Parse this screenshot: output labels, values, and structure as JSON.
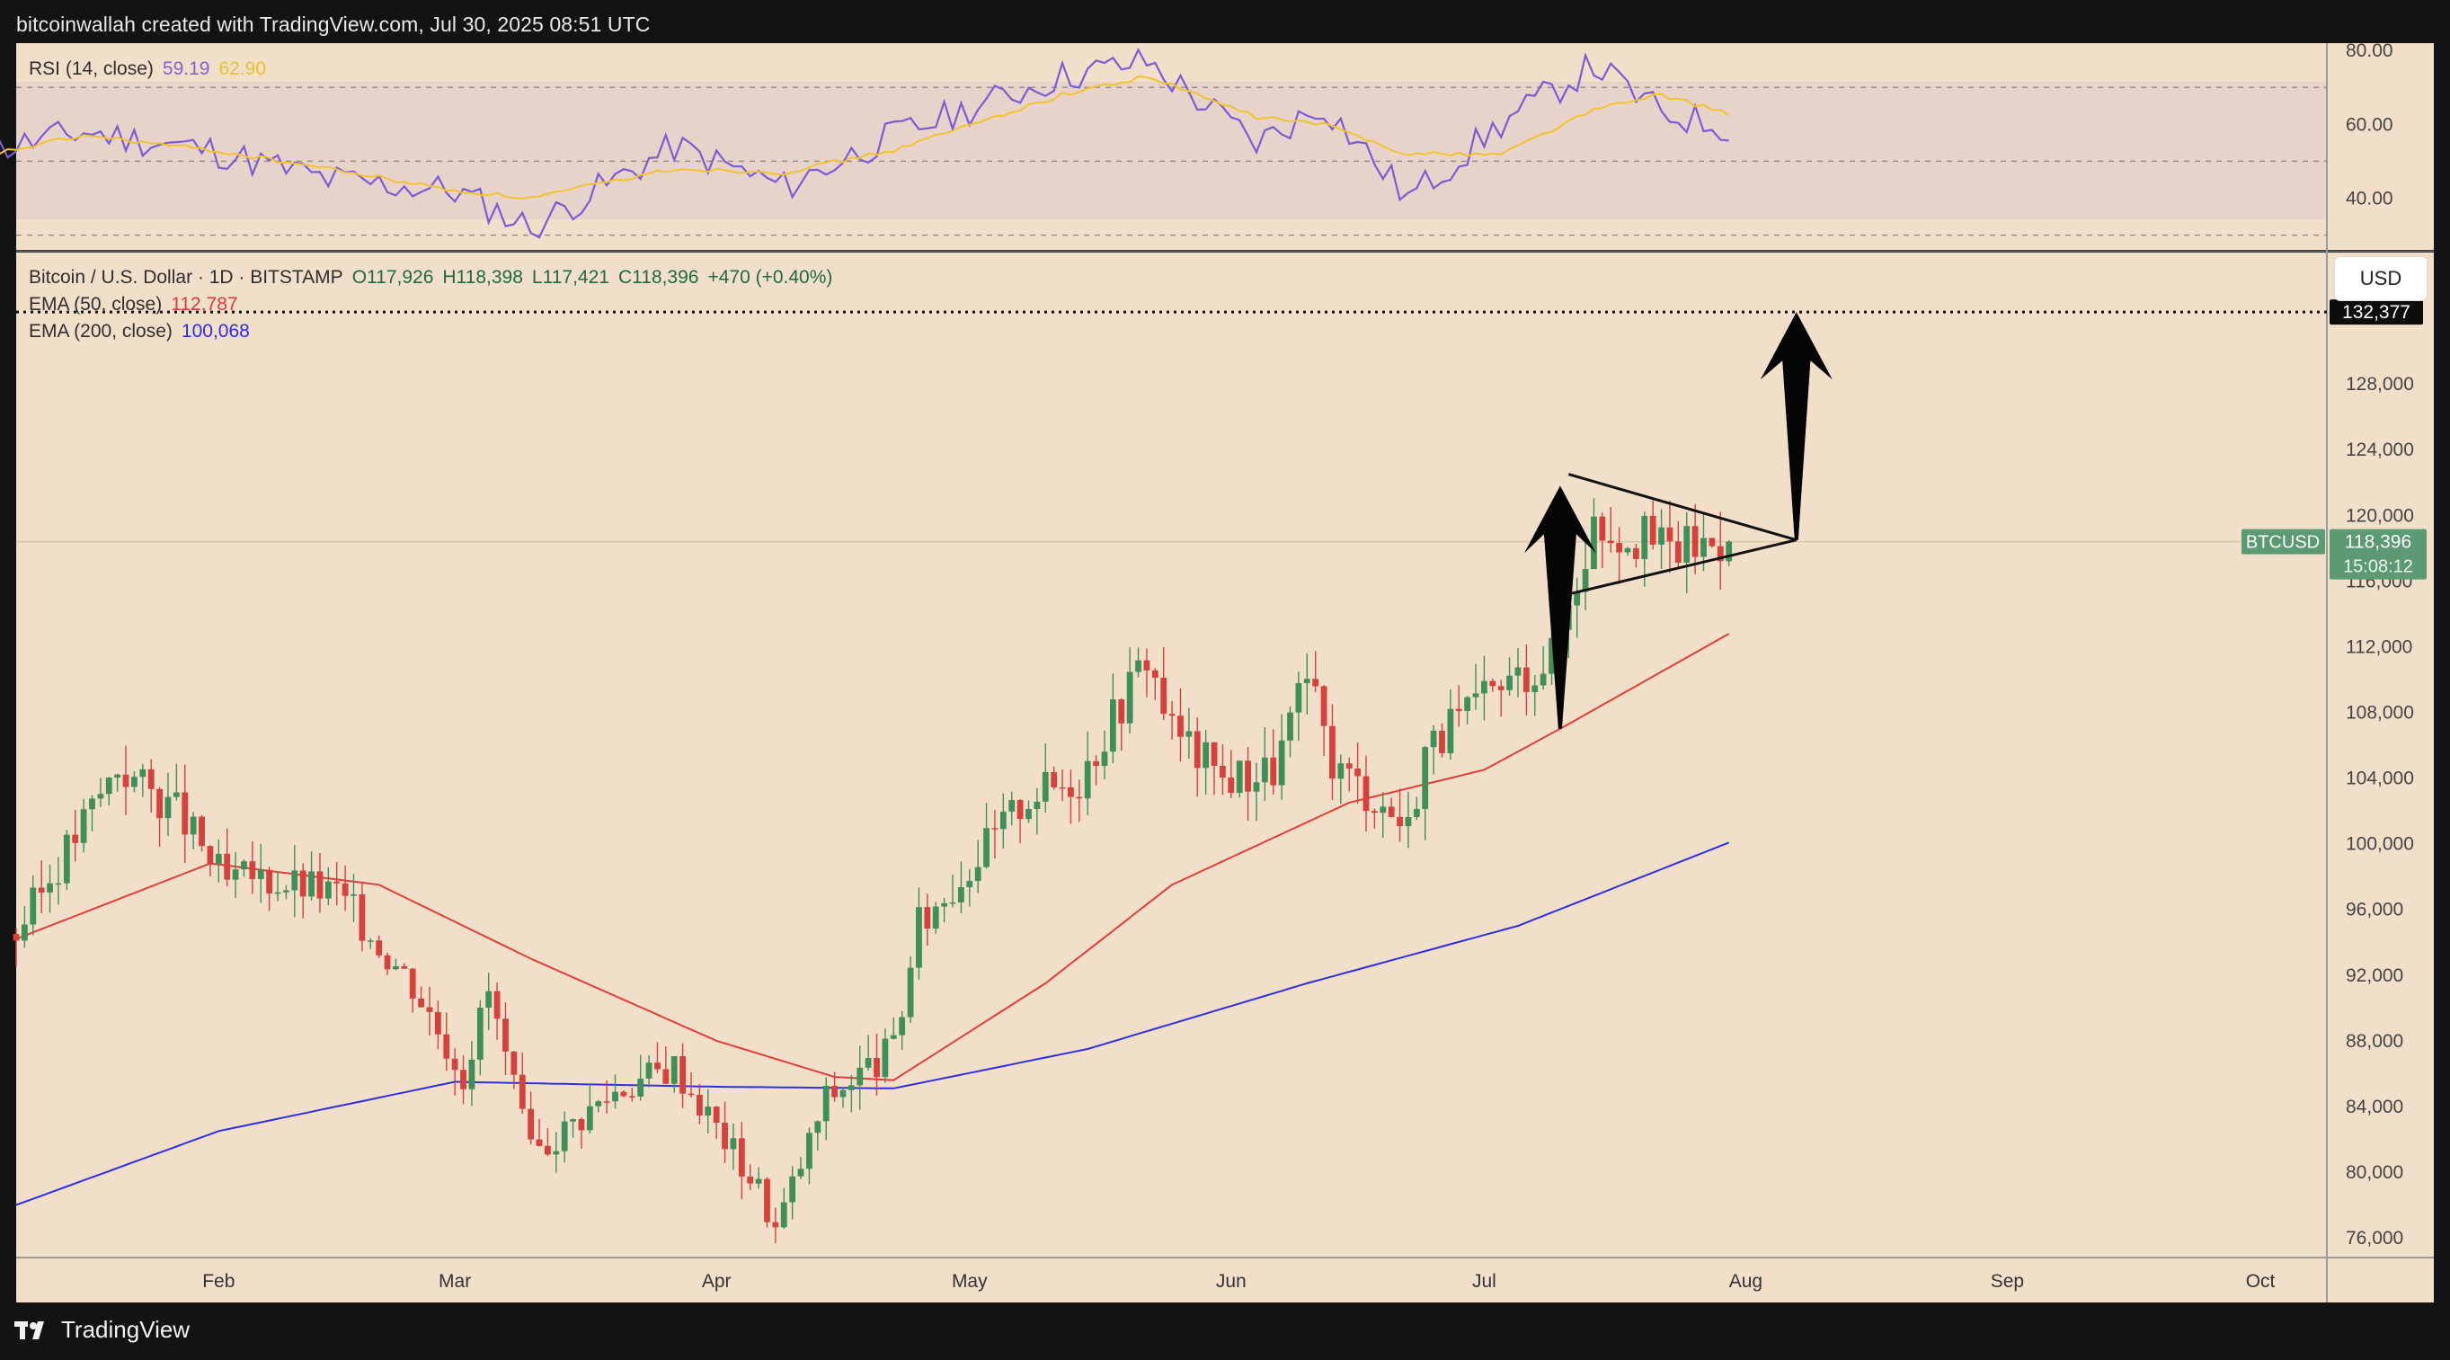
{
  "header": {
    "text": "bitcoinwallah created with TradingView.com, Jul 30, 2025 08:51 UTC"
  },
  "footer": {
    "brand": "TradingView"
  },
  "rsi_legend": {
    "label": "RSI (14, close)",
    "value": "59.19",
    "ma_value": "62.90"
  },
  "price_legend": {
    "symbol_line": "Bitcoin / U.S. Dollar · 1D · BITSTAMP",
    "open": "O117,926",
    "high": "H118,398",
    "low": "L117,421",
    "close": "C118,396",
    "change": "+470 (+0.40%)",
    "ema50_label": "EMA (50, close)",
    "ema50_value": "112,787",
    "ema200_label": "EMA (200, close)",
    "ema200_value": "100,068"
  },
  "currency_button": "USD",
  "price_tags": {
    "target": "132,377",
    "symbol": "BTCUSD",
    "last_price": "118,396",
    "countdown": "15:08:12"
  },
  "colors": {
    "background": "#131313",
    "panel": "#f2dfca",
    "up": "#3f8f59",
    "down": "#d6413d",
    "ema50": "#e23c3c",
    "ema200": "#2f2fe0",
    "rsi": "#7b5bd6",
    "rsi_ma": "#f0c330",
    "price_tag": "#5b9a73"
  },
  "chart_data": [
    {
      "type": "line",
      "title": "RSI (14, close)",
      "y_ticks": [
        "80.00",
        "60.00",
        "40.00"
      ],
      "ylim": [
        26,
        82
      ],
      "band": [
        30,
        70
      ],
      "midline": 50,
      "series": [
        {
          "name": "RSI (14, close)",
          "x": [
            "2025-01-01",
            "2025-01-16",
            "2025-01-31",
            "2025-02-14",
            "2025-03-01",
            "2025-03-10",
            "2025-03-27",
            "2025-04-09",
            "2025-04-22",
            "2025-05-12",
            "2025-05-22",
            "2025-06-04",
            "2025-06-12",
            "2025-06-22",
            "2025-07-03",
            "2025-07-14",
            "2025-07-22",
            "2025-07-30"
          ],
          "values": [
            51,
            58,
            53,
            45,
            42,
            32,
            54,
            43,
            57,
            73,
            77,
            55,
            65,
            40,
            60,
            76,
            63,
            59.19
          ]
        },
        {
          "name": "RSI MA",
          "x": [
            "2025-01-01",
            "2025-01-16",
            "2025-01-31",
            "2025-02-14",
            "2025-03-01",
            "2025-03-10",
            "2025-03-27",
            "2025-04-09",
            "2025-04-22",
            "2025-05-12",
            "2025-05-22",
            "2025-06-04",
            "2025-06-12",
            "2025-06-22",
            "2025-07-03",
            "2025-07-14",
            "2025-07-22",
            "2025-07-30"
          ],
          "values": [
            50,
            57,
            53,
            48,
            42,
            40,
            48,
            47,
            53,
            68,
            73,
            62,
            60,
            52,
            52,
            64,
            68,
            62.9
          ]
        }
      ]
    },
    {
      "type": "candlestick",
      "title": "Bitcoin / U.S. Dollar · 1D · BITSTAMP",
      "x_ticks": [
        "Feb",
        "Mar",
        "Apr",
        "May",
        "Jun",
        "Jul",
        "Aug",
        "Sep",
        "Oct"
      ],
      "x_tick_dates": [
        "2025-02-01",
        "2025-03-01",
        "2025-04-01",
        "2025-05-01",
        "2025-06-01",
        "2025-07-01",
        "2025-08-01",
        "2025-09-01",
        "2025-10-01"
      ],
      "xlim": [
        "2025-01-08",
        "2025-10-06"
      ],
      "y_ticks": [
        "128,000",
        "124,000",
        "120,000",
        "116,000",
        "112,000",
        "108,000",
        "104,000",
        "100,000",
        "96,000",
        "92,000",
        "88,000",
        "84,000",
        "80,000",
        "76,000"
      ],
      "ylim": [
        74800,
        136000
      ],
      "close_anchors": {
        "x": [
          "2025-01-08",
          "2025-01-15",
          "2025-01-20",
          "2025-01-27",
          "2025-02-02",
          "2025-02-05",
          "2025-02-15",
          "2025-02-24",
          "2025-03-02",
          "2025-03-05",
          "2025-03-10",
          "2025-03-20",
          "2025-03-27",
          "2025-04-06",
          "2025-04-08",
          "2025-04-14",
          "2025-04-22",
          "2025-04-25",
          "2025-05-08",
          "2025-05-14",
          "2025-05-22",
          "2025-05-25",
          "2025-05-31",
          "2025-06-06",
          "2025-06-10",
          "2025-06-13",
          "2025-06-22",
          "2025-06-24",
          "2025-07-03",
          "2025-07-09",
          "2025-07-14",
          "2025-07-17",
          "2025-07-23",
          "2025-07-30"
        ],
        "values": [
          94500,
          100500,
          104700,
          102000,
          97500,
          98000,
          97000,
          91500,
          86000,
          91000,
          81000,
          85000,
          86500,
          79000,
          76500,
          84500,
          87500,
          95000,
          103000,
          104000,
          111500,
          107000,
          104000,
          104500,
          110000,
          105000,
          101000,
          105800,
          109500,
          111500,
          119500,
          119000,
          118000,
          118396
        ]
      },
      "last_close": 118396,
      "target_price": 132377,
      "series": [
        {
          "name": "EMA (50, close)",
          "x": [
            "2025-01-08",
            "2025-01-31",
            "2025-02-20",
            "2025-03-10",
            "2025-04-01",
            "2025-04-15",
            "2025-04-22",
            "2025-05-10",
            "2025-05-25",
            "2025-06-15",
            "2025-07-01",
            "2025-07-10",
            "2025-07-30"
          ],
          "values": [
            94200,
            98800,
            97500,
            93000,
            88000,
            85800,
            85600,
            91500,
            97500,
            102500,
            104500,
            107000,
            112787
          ]
        },
        {
          "name": "EMA (200, close)",
          "x": [
            "2025-01-08",
            "2025-02-01",
            "2025-03-01",
            "2025-04-01",
            "2025-04-22",
            "2025-05-15",
            "2025-06-10",
            "2025-07-05",
            "2025-07-30"
          ],
          "values": [
            78000,
            82500,
            85500,
            85200,
            85100,
            87500,
            91500,
            95000,
            100068
          ]
        }
      ],
      "pattern": {
        "name": "symmetrical triangle (pennant)",
        "upper": {
          "x": [
            "2025-07-11",
            "2025-08-07"
          ],
          "values": [
            122500,
            118500
          ]
        },
        "lower": {
          "x": [
            "2025-07-11",
            "2025-08-07"
          ],
          "values": [
            115200,
            118500
          ]
        },
        "flagpole_arrow": {
          "x": "2025-07-10",
          "from": 107000,
          "to": 121800
        },
        "target_arrow": {
          "x": "2025-08-07",
          "from": 118500,
          "to": 132377
        }
      }
    }
  ]
}
